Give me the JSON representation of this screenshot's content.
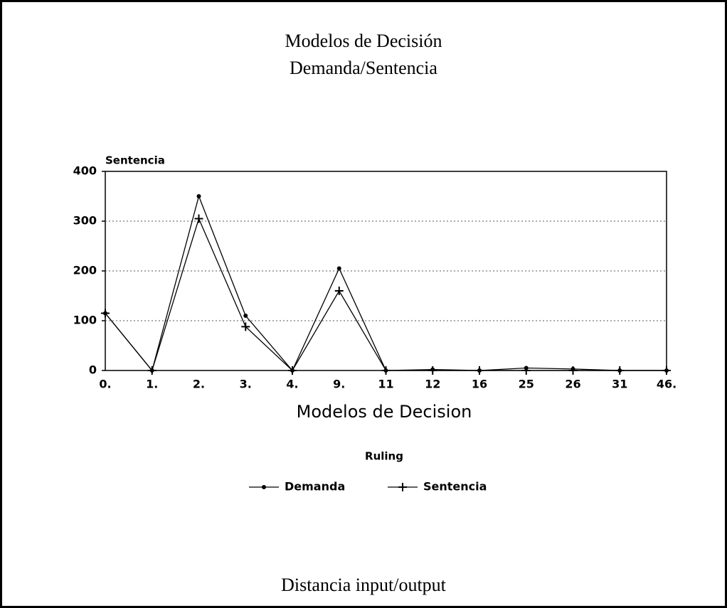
{
  "chart_data": {
    "type": "line",
    "title": "Modelos de Decisión",
    "subtitle": "Demanda/Sentencia",
    "y_label": "Sentencia",
    "x_label": "Modelos de Decision",
    "legend_title": "Ruling",
    "caption": "Distancia input/output",
    "categories": [
      "0.",
      "1.",
      "2.",
      "3.",
      "4.",
      "9.",
      "11",
      "12",
      "16",
      "25",
      "26",
      "31",
      "46."
    ],
    "series": [
      {
        "name": "Demanda",
        "color": "#000000",
        "marker": "dot",
        "values": [
          115,
          0,
          350,
          110,
          0,
          205,
          0,
          2,
          0,
          5,
          3,
          0,
          0
        ]
      },
      {
        "name": "Sentencia",
        "color": "#000000",
        "marker": "plus",
        "values": [
          115,
          0,
          305,
          88,
          0,
          160,
          0,
          0,
          0,
          0,
          0,
          0,
          0
        ]
      }
    ],
    "ylim": [
      0,
      400
    ],
    "yticks": [
      0,
      100,
      200,
      300,
      400
    ],
    "grid": true,
    "legend": "bottom"
  }
}
